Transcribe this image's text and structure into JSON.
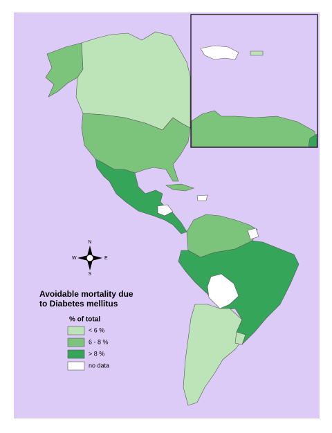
{
  "title": "Avoidable mortality due to Diabetes mellitus",
  "legend": {
    "title": "% of total",
    "items": [
      {
        "label": "< 6 %",
        "color": "#bde4b8"
      },
      {
        "label": "6 - 8 %",
        "color": "#7cc47c"
      },
      {
        "label": "> 8 %",
        "color": "#35a55a"
      },
      {
        "label": "no data",
        "color": "#ffffff"
      }
    ]
  },
  "compass": {
    "north": "N",
    "south": "S",
    "east": "E",
    "west": "W"
  }
}
